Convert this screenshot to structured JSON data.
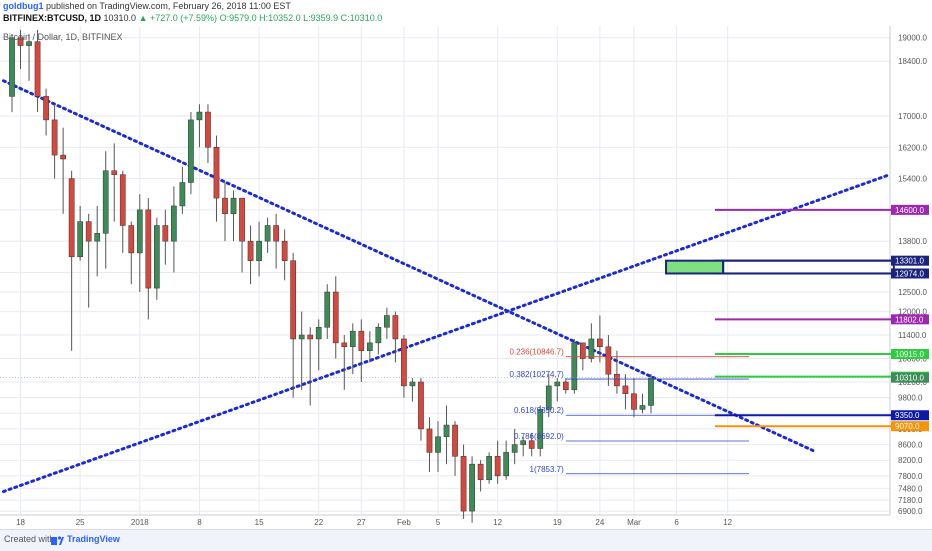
{
  "header": {
    "author": "goldbug1",
    "published_text": "published on TradingView.com, February 26, 2018 11:00 EST",
    "symbol": "BITFINEX:BTCUSD, 1D",
    "last_price": "10310.0",
    "change": "▲ +727.0 (+7.59%)",
    "ohlc": "O:9579.0 H:10352.0 L:9359.9 C:10310.0",
    "subtitle": "Bitcoin / Dollar, 1D, BITFINEX"
  },
  "footer": {
    "created_with": "Created with",
    "brand": "TradingView"
  },
  "colors": {
    "up_candle": "#3d8b57",
    "down_candle": "#d6473d",
    "trendline": "#1b2bd0",
    "grid": "#e7eaf1",
    "axis_text": "#555555"
  },
  "chart_data": {
    "type": "candlestick",
    "ylim": [
      6800,
      19300
    ],
    "y_ticks": [
      "19000.0",
      "18400.0",
      "17000.0",
      "16200.0",
      "15400.0",
      "14600.0",
      "13800.0",
      "13000.0",
      "12500.0",
      "12000.0",
      "11400.0",
      "10800.0",
      "10200.0",
      "9800.0",
      "9400.0",
      "9000.0",
      "8600.0",
      "8200.0",
      "7800.0",
      "7480.0",
      "7180.0",
      "6900.0"
    ],
    "x_ticks": [
      {
        "label": "18",
        "day": 1
      },
      {
        "label": "25",
        "day": 8
      },
      {
        "label": "2018",
        "day": 15
      },
      {
        "label": "8",
        "day": 22
      },
      {
        "label": "15",
        "day": 29
      },
      {
        "label": "22",
        "day": 36
      },
      {
        "label": "27",
        "day": 41
      },
      {
        "label": "Feb",
        "day": 46
      },
      {
        "label": "5",
        "day": 50
      },
      {
        "label": "12",
        "day": 57
      },
      {
        "label": "19",
        "day": 64
      },
      {
        "label": "24",
        "day": 69
      },
      {
        "label": "Mar",
        "day": 73
      },
      {
        "label": "6",
        "day": 78
      },
      {
        "label": "12",
        "day": 84
      }
    ],
    "candles": [
      [
        0,
        17500,
        19000,
        19100,
        17100
      ],
      [
        1,
        19000,
        18800,
        19200,
        18200
      ],
      [
        2,
        18800,
        18900,
        19100,
        17900
      ],
      [
        3,
        18900,
        17500,
        19200,
        17100
      ],
      [
        4,
        17500,
        16900,
        17700,
        16500
      ],
      [
        5,
        16900,
        16000,
        17300,
        15400
      ],
      [
        6,
        16000,
        15900,
        16700,
        14500
      ],
      [
        7,
        15400,
        13400,
        15600,
        11000
      ],
      [
        8,
        13400,
        14300,
        14700,
        13300
      ],
      [
        9,
        14300,
        13800,
        14500,
        12100
      ],
      [
        10,
        13800,
        14000,
        14700,
        12900
      ],
      [
        11,
        14000,
        15600,
        16100,
        13100
      ],
      [
        12,
        15600,
        15500,
        16300,
        14300
      ],
      [
        13,
        15500,
        14200,
        15600,
        13500
      ],
      [
        14,
        14200,
        13500,
        14300,
        12700
      ],
      [
        15,
        13500,
        14600,
        15000,
        12500
      ],
      [
        16,
        14600,
        12600,
        14900,
        11800
      ],
      [
        17,
        12600,
        14200,
        14400,
        12300
      ],
      [
        18,
        14200,
        13800,
        14600,
        13200
      ],
      [
        19,
        13800,
        14700,
        15200,
        13000
      ],
      [
        20,
        14700,
        15300,
        15700,
        14500
      ],
      [
        21,
        15300,
        16900,
        17100,
        15000
      ],
      [
        22,
        16900,
        17100,
        17300,
        16200
      ],
      [
        23,
        17100,
        16200,
        17300,
        15800
      ],
      [
        24,
        16200,
        14900,
        16500,
        14300
      ],
      [
        25,
        14900,
        14500,
        15300,
        13800
      ],
      [
        26,
        14500,
        14900,
        15100,
        13800
      ],
      [
        27,
        14900,
        13800,
        14900,
        13000
      ],
      [
        28,
        13800,
        13300,
        14200,
        12700
      ],
      [
        29,
        13300,
        13800,
        14300,
        12900
      ],
      [
        30,
        13800,
        14200,
        14400,
        13500
      ],
      [
        31,
        14200,
        13800,
        14500,
        13100
      ],
      [
        32,
        13800,
        13300,
        14100,
        12800
      ],
      [
        33,
        13300,
        11300,
        13500,
        9800
      ],
      [
        34,
        11300,
        11400,
        12000,
        10000
      ],
      [
        35,
        11400,
        11300,
        11600,
        9600
      ],
      [
        36,
        11300,
        11600,
        11800,
        10500
      ],
      [
        37,
        11600,
        12500,
        12700,
        11300
      ],
      [
        38,
        12500,
        11200,
        12900,
        10800
      ],
      [
        39,
        11200,
        11100,
        11400,
        10000
      ],
      [
        40,
        11100,
        11500,
        11700,
        10400
      ],
      [
        41,
        11500,
        11000,
        11800,
        10200
      ],
      [
        42,
        11000,
        11200,
        11500,
        10700
      ],
      [
        43,
        11200,
        11600,
        11700,
        10900
      ],
      [
        44,
        11600,
        11900,
        12100,
        11300
      ],
      [
        45,
        11900,
        11300,
        12000,
        10700
      ],
      [
        46,
        11300,
        10100,
        11400,
        9800
      ],
      [
        47,
        10100,
        10200,
        10300,
        9700
      ],
      [
        48,
        10200,
        9000,
        10300,
        8700
      ],
      [
        49,
        9000,
        8400,
        9300,
        7900
      ],
      [
        50,
        8400,
        8800,
        9200,
        7900
      ],
      [
        51,
        8800,
        9100,
        9600,
        8100
      ],
      [
        52,
        9100,
        8300,
        9200,
        7800
      ],
      [
        53,
        8300,
        6900,
        8600,
        6700
      ],
      [
        54,
        6900,
        8100,
        8300,
        6600
      ],
      [
        55,
        8100,
        7700,
        8200,
        7400
      ],
      [
        56,
        7700,
        8300,
        8400,
        7600
      ],
      [
        57,
        8300,
        7800,
        8700,
        7600
      ],
      [
        58,
        7800,
        8400,
        8700,
        7700
      ],
      [
        59,
        8400,
        8600,
        9000,
        8100
      ],
      [
        60,
        8600,
        8700,
        8800,
        8300
      ],
      [
        61,
        8700,
        8500,
        8900,
        8300
      ],
      [
        62,
        8500,
        9500,
        9600,
        8300
      ],
      [
        63,
        9500,
        10100,
        10400,
        9300
      ],
      [
        64,
        10100,
        10200,
        10300,
        9700
      ],
      [
        65,
        10200,
        10000,
        10300,
        9900
      ],
      [
        66,
        10000,
        11200,
        11300,
        9900
      ],
      [
        67,
        11200,
        10800,
        11200,
        10500
      ],
      [
        68,
        10800,
        11300,
        11700,
        10700
      ],
      [
        69,
        11300,
        11100,
        11900,
        10700
      ],
      [
        70,
        11100,
        10400,
        11400,
        10100
      ],
      [
        71,
        10400,
        10100,
        11000,
        9900
      ],
      [
        72,
        10100,
        9900,
        10400,
        9500
      ],
      [
        73,
        9900,
        9500,
        10300,
        9300
      ],
      [
        74,
        9500,
        9600,
        9900,
        9400
      ],
      [
        75,
        9600,
        10300,
        10400,
        9400
      ]
    ],
    "fib_levels": [
      {
        "label": "0.236(10846.7)",
        "value": 10846.7,
        "color": "#d6473d"
      },
      {
        "label": "0.382(10274.7)",
        "value": 10274.7,
        "color": "#3245c9"
      },
      {
        "label": "0.618(9350.2)",
        "value": 9350.2,
        "color": "#3245c9"
      },
      {
        "label": "0.786(8692.0)",
        "value": 8692.0,
        "color": "#3245c9"
      },
      {
        "label": "1(7853.7)",
        "value": 7853.7,
        "color": "#3245c9"
      }
    ],
    "price_lines": [
      {
        "label": "14600.0",
        "value": 14600,
        "color": "#9c27b0"
      },
      {
        "label": "13301.0",
        "value": 13301,
        "color": "#1a237e"
      },
      {
        "label": "12974.0",
        "value": 12974,
        "color": "#1a237e"
      },
      {
        "label": "11802.0",
        "value": 11802,
        "color": "#9c27b0"
      },
      {
        "label": "10915.0",
        "value": 10915,
        "color": "#2ecc40"
      },
      {
        "label": "10336.0",
        "value": 10336,
        "color": "#2ecc40"
      },
      {
        "label": "10310.0",
        "value": 10310,
        "color": "#3d8b57"
      },
      {
        "label": "9350.0",
        "value": 9350,
        "color": "#0d1aa8"
      },
      {
        "label": "9070.0",
        "value": 9070,
        "color": "#f5930b"
      }
    ],
    "rect_zone": {
      "from_day": 77,
      "to_day": 83,
      "low": 12974,
      "high": 13301
    }
  }
}
